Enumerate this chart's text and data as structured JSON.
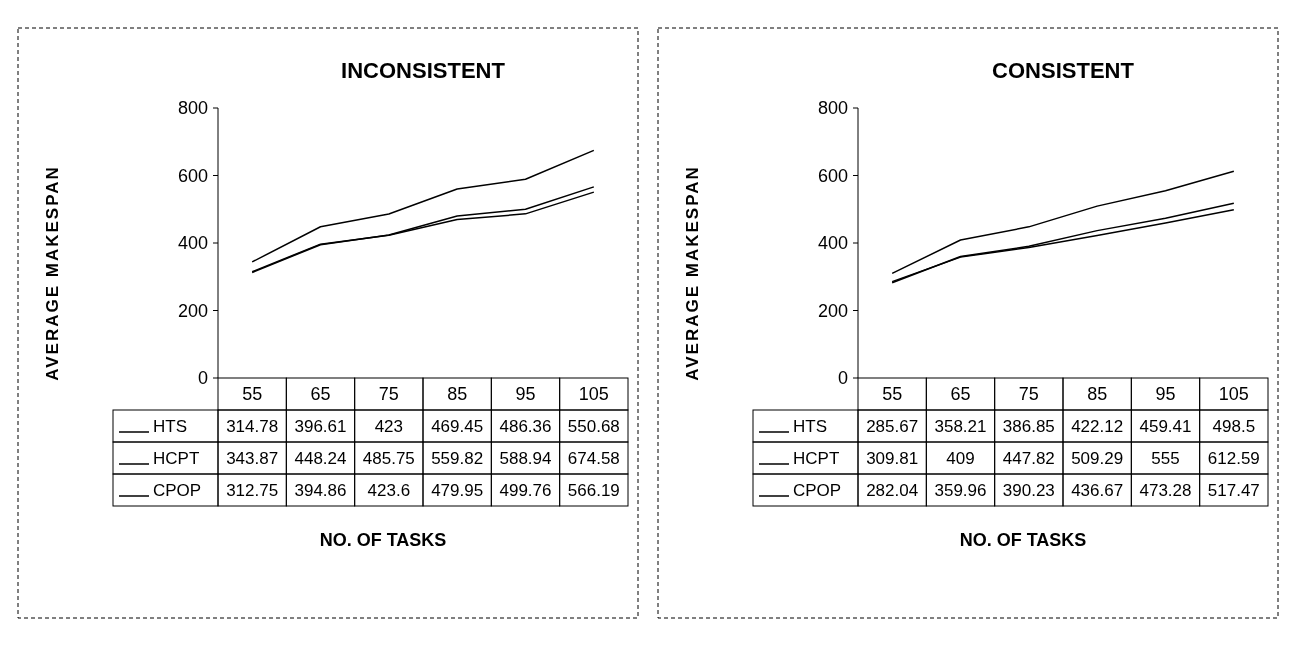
{
  "chart_data": [
    {
      "type": "line",
      "title": "INCONSISTENT",
      "xlabel": "NO. OF TASKS",
      "ylabel": "AVERAGE MAKESPAN",
      "categories": [
        "55",
        "65",
        "75",
        "85",
        "95",
        "105"
      ],
      "ylim": [
        0,
        800
      ],
      "yticks": [
        0,
        200,
        400,
        600,
        800
      ],
      "data_labels": true,
      "legend": "bottom",
      "series": [
        {
          "name": "HTS",
          "color": "#000000",
          "values": [
            314.78,
            396.61,
            423,
            469.45,
            486.36,
            550.68
          ]
        },
        {
          "name": "HCPT",
          "color": "#000000",
          "values": [
            343.87,
            448.24,
            485.75,
            559.82,
            588.94,
            674.58
          ]
        },
        {
          "name": "CPOP",
          "color": "#000000",
          "values": [
            312.75,
            394.86,
            423.6,
            479.95,
            499.76,
            566.19
          ]
        }
      ]
    },
    {
      "type": "line",
      "title": "CONSISTENT",
      "xlabel": "NO. OF TASKS",
      "ylabel": "AVERAGE MAKESPAN",
      "categories": [
        "55",
        "65",
        "75",
        "85",
        "95",
        "105"
      ],
      "ylim": [
        0,
        800
      ],
      "yticks": [
        0,
        200,
        400,
        600,
        800
      ],
      "data_labels": true,
      "legend": "bottom",
      "series": [
        {
          "name": "HTS",
          "color": "#000000",
          "values": [
            285.67,
            358.21,
            386.85,
            422.12,
            459.41,
            498.5
          ]
        },
        {
          "name": "HCPT",
          "color": "#000000",
          "values": [
            309.81,
            409,
            447.82,
            509.29,
            555,
            612.59
          ]
        },
        {
          "name": "CPOP",
          "color": "#000000",
          "values": [
            282.04,
            359.96,
            390.23,
            436.67,
            473.28,
            517.47
          ]
        }
      ]
    }
  ]
}
